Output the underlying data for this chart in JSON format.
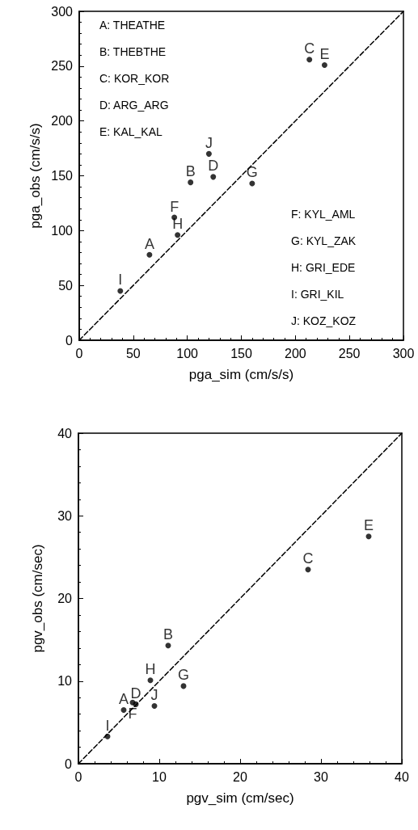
{
  "chart_data": [
    {
      "type": "scatter",
      "xlabel": "pga_sim (cm/s/s)",
      "ylabel": "pga_obs (cm/s/s)",
      "xlim": [
        0,
        300
      ],
      "ylim": [
        0,
        300
      ],
      "xticks": [
        0,
        50,
        100,
        150,
        200,
        250,
        300
      ],
      "yticks": [
        0,
        50,
        100,
        150,
        200,
        250,
        300
      ],
      "grid": false,
      "marker": "circle",
      "annotations": [
        "A: THEATHE",
        "B: THEBTHE",
        "C: KOR_KOR",
        "D: ARG_ARG",
        "E: KAL_KAL",
        "F: KYL_AML",
        "G: KYL_ZAK",
        "H: GRI_EDE",
        "I: GRI_KIL",
        "J: KOZ_KOZ"
      ],
      "series": [
        {
          "type": "scatter",
          "color": "#000000",
          "x": [
            65,
            103,
            213,
            124,
            227,
            88,
            160,
            91,
            38,
            120
          ],
          "values": [
            78,
            144,
            256,
            149,
            251,
            112,
            143,
            96,
            45,
            170
          ],
          "value_labels": [
            "A",
            "B",
            "C",
            "D",
            "E",
            "F",
            "G",
            "H",
            "I",
            "J"
          ]
        },
        {
          "type": "line",
          "color": "#000000",
          "marker": "none",
          "line_style": "dashed",
          "x": [
            0,
            300
          ],
          "values": [
            0,
            300
          ]
        }
      ]
    },
    {
      "type": "scatter",
      "xlabel": "pgv_sim (cm/sec)",
      "ylabel": "pgv_obs (cm/sec)",
      "xlim": [
        0,
        40
      ],
      "ylim": [
        0,
        40
      ],
      "xticks": [
        0,
        10,
        20,
        30,
        40
      ],
      "yticks": [
        0,
        10,
        20,
        30,
        40
      ],
      "grid": false,
      "marker": "circle",
      "series": [
        {
          "type": "scatter",
          "color": "#000000",
          "x": [
            5.6,
            11.1,
            28.4,
            7.1,
            35.9,
            6.7,
            13,
            8.9,
            3.6,
            9.4
          ],
          "values": [
            6.5,
            14.3,
            23.5,
            7.2,
            27.5,
            7.4,
            9.4,
            10.1,
            3.3,
            7.0
          ],
          "value_labels": [
            "A",
            "B",
            "C",
            "D",
            "E",
            "F",
            "G",
            "H",
            "I",
            "J"
          ]
        },
        {
          "type": "line",
          "color": "#000000",
          "marker": "none",
          "line_style": "dashed",
          "x": [
            0,
            40
          ],
          "values": [
            0,
            40
          ]
        }
      ]
    }
  ]
}
